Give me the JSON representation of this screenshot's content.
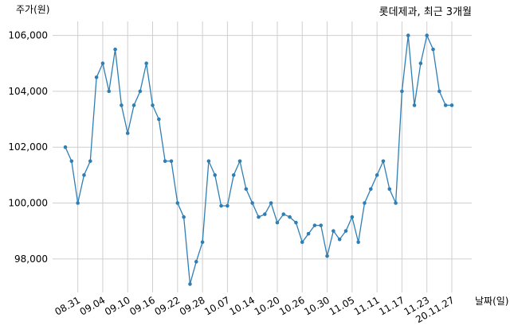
{
  "chart_data": {
    "type": "line",
    "title": "롯데제과, 최근 3개월",
    "xlabel": "날짜(일)",
    "ylabel": "주가(원)",
    "grid": true,
    "ylim": [
      96800,
      106500
    ],
    "y_ticks": [
      {
        "value": 98000,
        "label": "98,000"
      },
      {
        "value": 100000,
        "label": "100,000"
      },
      {
        "value": 102000,
        "label": "102,000"
      },
      {
        "value": 104000,
        "label": "104,000"
      },
      {
        "value": 106000,
        "label": "106,000"
      }
    ],
    "x_ticks": [
      {
        "index": 2,
        "label": "08.31"
      },
      {
        "index": 6,
        "label": "09.04"
      },
      {
        "index": 10,
        "label": "09.10"
      },
      {
        "index": 14,
        "label": "09.16"
      },
      {
        "index": 18,
        "label": "09.22"
      },
      {
        "index": 22,
        "label": "09.28"
      },
      {
        "index": 26,
        "label": "10.07"
      },
      {
        "index": 30,
        "label": "10.14"
      },
      {
        "index": 34,
        "label": "10.20"
      },
      {
        "index": 38,
        "label": "10.26"
      },
      {
        "index": 42,
        "label": "10.30"
      },
      {
        "index": 46,
        "label": "11.05"
      },
      {
        "index": 50,
        "label": "11.11"
      },
      {
        "index": 54,
        "label": "11.17"
      },
      {
        "index": 58,
        "label": "11.23"
      },
      {
        "index": 62,
        "label": "20.11.27"
      }
    ],
    "series": [
      {
        "color": "#2f7fb5",
        "values": [
          102000,
          101500,
          100000,
          101000,
          101500,
          104500,
          105000,
          104000,
          105500,
          103500,
          102500,
          103500,
          104000,
          105000,
          103500,
          103000,
          101500,
          101500,
          100000,
          99500,
          97100,
          97900,
          98600,
          101500,
          101000,
          99900,
          99900,
          101000,
          101500,
          100500,
          100000,
          99500,
          99600,
          100000,
          99300,
          99600,
          99500,
          99300,
          98600,
          98900,
          99200,
          99200,
          98100,
          99000,
          98700,
          99000,
          99500,
          98600,
          100000,
          100500,
          101000,
          101500,
          100500,
          100000,
          104000,
          106000,
          103500,
          105000,
          106000,
          105500,
          104000,
          103500,
          103500
        ]
      }
    ]
  }
}
